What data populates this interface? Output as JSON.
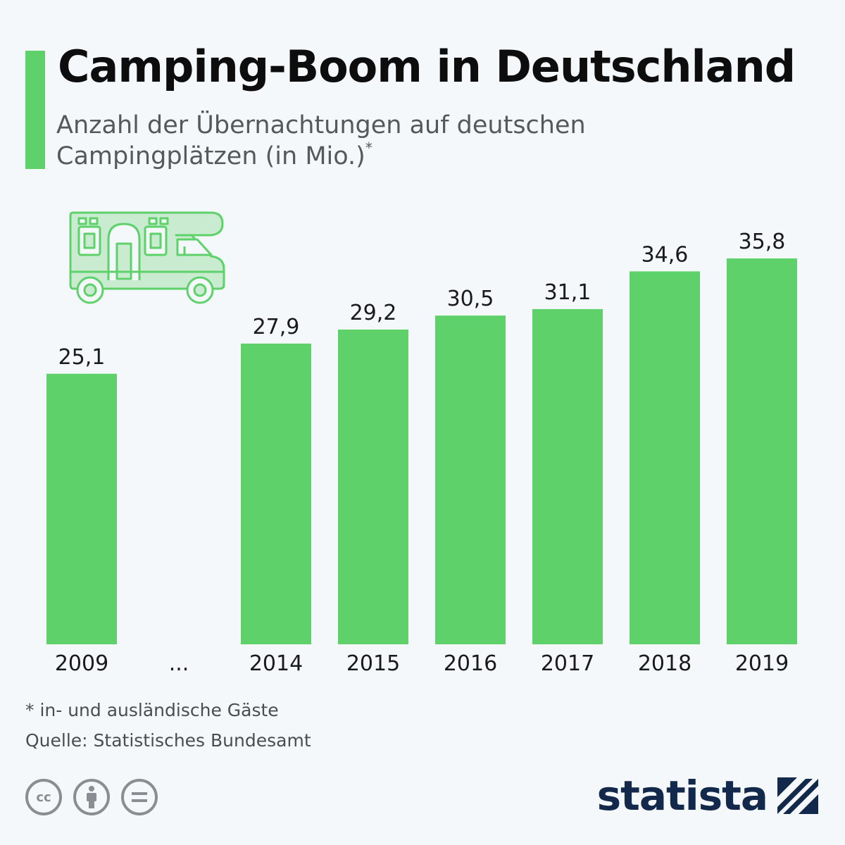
{
  "title": "Camping-Boom in Deutschland",
  "subtitle": "Anzahl der Übernachtungen auf deutschen Campingplätzen (in Mio.)",
  "subtitle_marker": "*",
  "footnote": "* in- und ausländische Gäste",
  "source": "Quelle: Statistisches Bundesamt",
  "brand": "statista",
  "colors": {
    "bar": "#5fd16b",
    "accent": "#5fd16b",
    "icon": "#5fd16b",
    "icon_fill": "#c9ecd0",
    "brand": "#13294b"
  },
  "icons": [
    "camper-van-icon",
    "cc-icon",
    "attribution-icon",
    "no-derivatives-icon",
    "statista-logo-icon"
  ],
  "chart_data": {
    "type": "bar",
    "categories": [
      "2009",
      "...",
      "2014",
      "2015",
      "2016",
      "2017",
      "2018",
      "2019"
    ],
    "values": [
      25.1,
      null,
      27.9,
      29.2,
      30.5,
      31.1,
      34.6,
      35.8
    ],
    "value_labels": [
      "25,1",
      "",
      "27,9",
      "29,2",
      "30,5",
      "31,1",
      "34,6",
      "35,8"
    ],
    "ylim": [
      0,
      35.8
    ],
    "xlabel": "",
    "ylabel": "",
    "grid": false
  }
}
